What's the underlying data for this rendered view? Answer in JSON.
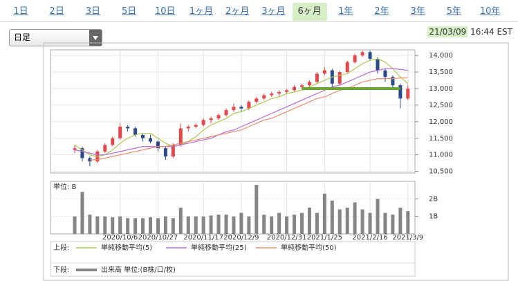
{
  "tabs": [
    "1日",
    "2日",
    "3日",
    "5日",
    "10日",
    "1ヶ月",
    "2ヶ月",
    "3ヶ月",
    "6ヶ月",
    "1年",
    "2年",
    "3年",
    "5年",
    "10年"
  ],
  "selected_tab": 8,
  "select": "日足",
  "timestamp": {
    "date": "21/03/09",
    "time": "16:44 EST"
  },
  "legend": {
    "upper": "上段:",
    "lower": "下段:"
  },
  "chart_data": [
    {
      "type": "candlestick",
      "categories": [
        null,
        null,
        null,
        null,
        null,
        null,
        "2020/10/6",
        null,
        null,
        null,
        null,
        "2020/10/27",
        null,
        null,
        null,
        null,
        null,
        "2020/11/17",
        null,
        null,
        null,
        null,
        "2020/12/9",
        null,
        null,
        null,
        null,
        null,
        "2020/12/31",
        null,
        null,
        null,
        null,
        "2021/1/25",
        null,
        null,
        null,
        null,
        null,
        "2021/2/16",
        null,
        null,
        null,
        null,
        "2021/3/9"
      ],
      "open": [
        11150,
        11200,
        10900,
        10800,
        11100,
        11300,
        11500,
        11850,
        11800,
        11600,
        11500,
        11400,
        11200,
        10950,
        11300,
        11800,
        11850,
        11900,
        12050,
        12100,
        12200,
        12350,
        12450,
        12400,
        12600,
        12700,
        12800,
        12850,
        12900,
        12950,
        13050,
        13100,
        13200,
        13450,
        13550,
        13150,
        13500,
        13800,
        14000,
        14100,
        13900,
        13550,
        13350,
        13100,
        12700
      ],
      "high": [
        11300,
        11250,
        10950,
        11150,
        11350,
        11550,
        11950,
        11900,
        11850,
        11650,
        11600,
        11450,
        11250,
        11350,
        11950,
        11900,
        11950,
        12100,
        12150,
        12250,
        12400,
        12550,
        12500,
        12650,
        12750,
        12850,
        12900,
        12950,
        13000,
        13100,
        13150,
        13250,
        13500,
        13650,
        13600,
        13550,
        13850,
        14050,
        14150,
        14150,
        13950,
        13600,
        13400,
        13150,
        13100
      ],
      "low": [
        11050,
        10800,
        10650,
        10750,
        11050,
        11250,
        11450,
        11700,
        11550,
        11400,
        11350,
        11100,
        10850,
        10900,
        11250,
        11700,
        11800,
        11850,
        11950,
        12050,
        12150,
        12300,
        12300,
        12350,
        12550,
        12650,
        12750,
        12750,
        12850,
        12900,
        13000,
        13050,
        13150,
        13400,
        13050,
        13100,
        13450,
        13750,
        13950,
        13850,
        13450,
        13200,
        13000,
        12400,
        12650
      ],
      "close": [
        11200,
        10900,
        10800,
        11100,
        11300,
        11500,
        11850,
        11800,
        11600,
        11500,
        11400,
        11200,
        10950,
        11300,
        11800,
        11850,
        11900,
        12050,
        12100,
        12200,
        12350,
        12450,
        12400,
        12600,
        12700,
        12800,
        12850,
        12900,
        12950,
        13050,
        13100,
        13200,
        13450,
        13550,
        13150,
        13500,
        13800,
        14000,
        14100,
        13900,
        13550,
        13350,
        13100,
        12700,
        13000
      ],
      "up_color": "#e2474c",
      "down_color": "#2c4a8a",
      "series": [
        {
          "name": "単純移動平均(5)",
          "color": "#a9c94f",
          "values": [
            11300,
            11150,
            11000,
            10950,
            11000,
            11150,
            11350,
            11500,
            11600,
            11650,
            11650,
            11500,
            11350,
            11250,
            11300,
            11400,
            11550,
            11750,
            11900,
            12000,
            12100,
            12250,
            12300,
            12400,
            12500,
            12600,
            12700,
            12750,
            12850,
            12900,
            12950,
            13050,
            13150,
            13250,
            13350,
            13400,
            13450,
            13600,
            13750,
            13850,
            13900,
            13800,
            13600,
            13350,
            13150
          ]
        },
        {
          "name": "単純移動平均(25)",
          "color": "#b46ad8",
          "values": [
            11150,
            11100,
            11050,
            11000,
            11000,
            11050,
            11100,
            11150,
            11200,
            11250,
            11250,
            11250,
            11250,
            11250,
            11300,
            11350,
            11400,
            11450,
            11500,
            11600,
            11700,
            11750,
            11850,
            11950,
            12050,
            12150,
            12250,
            12350,
            12450,
            12550,
            12650,
            12750,
            12850,
            12950,
            13050,
            13100,
            13200,
            13300,
            13400,
            13500,
            13550,
            13600,
            13600,
            13580,
            13550
          ]
        },
        {
          "name": "単純移動平均(50)",
          "color": "#ef8b6b",
          "values": [
            null,
            null,
            10850,
            10850,
            10900,
            10950,
            11000,
            11050,
            11100,
            11150,
            11200,
            11250,
            11250,
            11300,
            11350,
            11400,
            11450,
            11500,
            11550,
            11600,
            11650,
            11700,
            11750,
            11850,
            11950,
            12050,
            12100,
            12200,
            12300,
            12400,
            12500,
            12600,
            12700,
            12750,
            12850,
            12950,
            13000,
            13100,
            13200,
            13250,
            13300,
            13300,
            13300,
            13320,
            13330
          ]
        }
      ],
      "support_line": {
        "value": 13000,
        "start": 30,
        "end": 43,
        "color": "#6aa832"
      },
      "ylim": [
        10450,
        14170
      ],
      "yticks": [
        {
          "value": 10500,
          "label": "10,500"
        },
        {
          "value": 11000,
          "label": "11,000"
        },
        {
          "value": 11500,
          "label": "11,500"
        },
        {
          "value": 12000,
          "label": "12,000"
        },
        {
          "value": 12500,
          "label": "12,500"
        },
        {
          "value": 13000,
          "label": "13,000"
        },
        {
          "value": 13500,
          "label": "13,500"
        },
        {
          "value": 14000,
          "label": "14,000"
        }
      ]
    },
    {
      "type": "bar",
      "unit_label": "単位: B",
      "series": [
        {
          "name": "出来高 単位:(B株/口/枚)",
          "color": "#858585",
          "values": [
            1.0,
            2.4,
            1.1,
            1.0,
            1.0,
            0.95,
            1.0,
            0.9,
            0.9,
            0.9,
            0.95,
            0.9,
            1.0,
            0.9,
            1.5,
            1.0,
            1.0,
            1.0,
            1.05,
            1.1,
            1.1,
            1.0,
            1.2,
            1.0,
            2.8,
            1.1,
            1.0,
            1.2,
            1.0,
            1.1,
            1.2,
            1.5,
            1.2,
            2.3,
            1.9,
            1.4,
            1.5,
            1.8,
            1.4,
            1.2,
            2.0,
            1.2,
            1.1,
            1.5,
            1.3
          ]
        }
      ],
      "ylim": [
        0,
        3
      ],
      "yticks": [
        {
          "value": 1,
          "label": "1B"
        },
        {
          "value": 2,
          "label": "2B"
        }
      ]
    }
  ]
}
